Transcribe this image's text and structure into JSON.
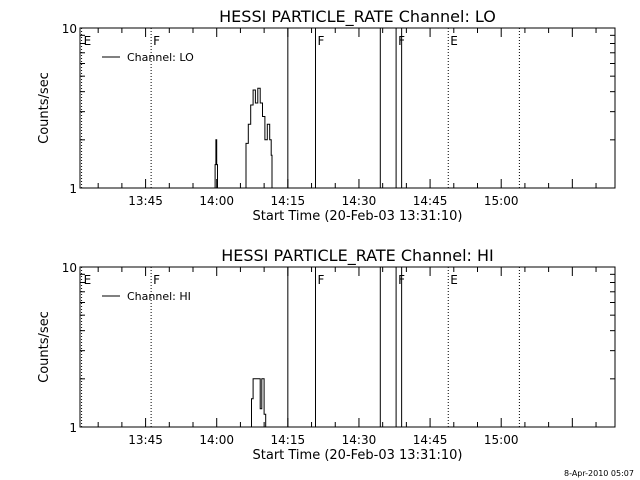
{
  "chart_data": [
    {
      "type": "line",
      "title": "HESSI PARTICLE_RATE Channel: LO",
      "xlabel": "Start Time (20-Feb-03 13:31:10)",
      "ylabel": "Counts/sec",
      "xlim": [
        "13:31:10",
        "15:24"
      ],
      "ylim": [
        1,
        10
      ],
      "yscale": "log",
      "xticks": [
        "13:45",
        "14:00",
        "14:15",
        "14:30",
        "14:45",
        "15:00"
      ],
      "yticks": [
        "1",
        "10"
      ],
      "grid": false,
      "legend": {
        "placement": "top-left",
        "entries": [
          "Channel: LO"
        ]
      },
      "series": [
        {
          "name": "Channel: LO",
          "color": "#000000",
          "x": [
            "13:31:10",
            "13:59:30",
            "13:59:40",
            "13:59:50",
            "14:00:00",
            "14:00:10",
            "14:00:20",
            "14:05:50",
            "14:06:10",
            "14:06:40",
            "14:07:10",
            "14:07:40",
            "14:08:10",
            "14:08:40",
            "14:09:10",
            "14:09:40",
            "14:10:10",
            "14:10:40",
            "14:11:10",
            "14:11:30",
            "14:11:40",
            "15:24:00"
          ],
          "y": [
            1,
            1,
            1.4,
            2.0,
            1.4,
            1,
            1,
            1,
            1.9,
            2.5,
            3.3,
            4.1,
            3.4,
            4.2,
            3.4,
            2.8,
            2.0,
            2.5,
            2.0,
            1.6,
            1,
            1
          ]
        }
      ],
      "flags": [
        {
          "label": "E",
          "time": "13:31:30",
          "style": "dotted"
        },
        {
          "label": "F",
          "time": "13:46:10",
          "style": "dotted"
        },
        {
          "label": "",
          "time": "14:15:00",
          "style": "solid"
        },
        {
          "label": "F",
          "time": "14:20:50",
          "style": "solid"
        },
        {
          "label": "",
          "time": "14:34:30",
          "style": "solid"
        },
        {
          "label": "F",
          "time": "14:37:50",
          "style": "solid"
        },
        {
          "label": "",
          "time": "14:39:00",
          "style": "solid"
        },
        {
          "label": "E",
          "time": "14:48:50",
          "style": "dotted"
        },
        {
          "label": "",
          "time": "15:03:50",
          "style": "dotted"
        }
      ]
    },
    {
      "type": "line",
      "title": "HESSI PARTICLE_RATE Channel: HI",
      "xlabel": "Start Time (20-Feb-03 13:31:10)",
      "ylabel": "Counts/sec",
      "xlim": [
        "13:31:10",
        "15:24"
      ],
      "ylim": [
        1,
        10
      ],
      "yscale": "log",
      "xticks": [
        "13:45",
        "14:00",
        "14:15",
        "14:30",
        "14:45",
        "15:00"
      ],
      "yticks": [
        "1",
        "10"
      ],
      "grid": false,
      "legend": {
        "placement": "top-left",
        "entries": [
          "Channel: HI"
        ]
      },
      "series": [
        {
          "name": "Channel: HI",
          "color": "#000000",
          "x": [
            "13:31:10",
            "14:07:00",
            "14:07:20",
            "14:07:40",
            "14:08:50",
            "14:09:10",
            "14:09:20",
            "14:09:30",
            "14:09:40",
            "14:10:00",
            "14:10:20",
            "15:24:00"
          ],
          "y": [
            1,
            1,
            1.5,
            2.0,
            2.0,
            1.3,
            1.3,
            2.0,
            2.0,
            1.2,
            1,
            1
          ]
        }
      ],
      "flags": [
        {
          "label": "E",
          "time": "13:31:30",
          "style": "dotted"
        },
        {
          "label": "F",
          "time": "13:46:10",
          "style": "dotted"
        },
        {
          "label": "",
          "time": "14:15:00",
          "style": "solid"
        },
        {
          "label": "F",
          "time": "14:20:50",
          "style": "solid"
        },
        {
          "label": "",
          "time": "14:34:30",
          "style": "solid"
        },
        {
          "label": "F",
          "time": "14:37:50",
          "style": "solid"
        },
        {
          "label": "",
          "time": "14:39:00",
          "style": "solid"
        },
        {
          "label": "E",
          "time": "14:48:50",
          "style": "dotted"
        },
        {
          "label": "",
          "time": "15:03:50",
          "style": "dotted"
        }
      ]
    }
  ],
  "footer": {
    "timestamp": "8-Apr-2010 05:07"
  }
}
